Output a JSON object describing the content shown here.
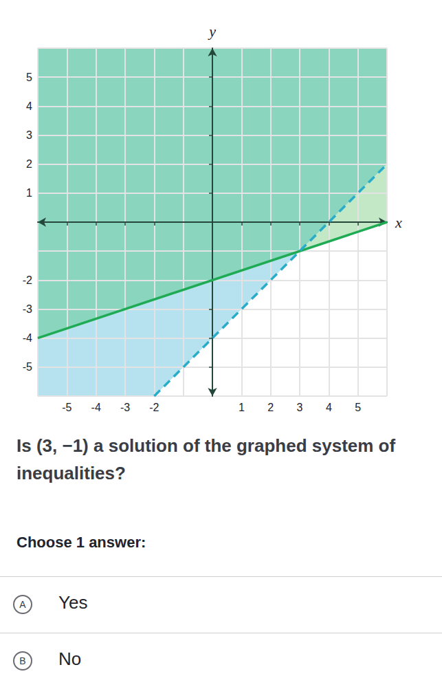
{
  "chart_data": {
    "type": "inequality",
    "xlabel": "x",
    "ylabel": "y",
    "xlim": [
      -6,
      6
    ],
    "ylim": [
      -6,
      6
    ],
    "xticks": [
      -5,
      -4,
      -3,
      -2,
      1,
      2,
      3,
      4,
      5
    ],
    "yticks": [
      -5,
      -4,
      -3,
      -2,
      1,
      2,
      3,
      4,
      5
    ],
    "grid": true,
    "series": [
      {
        "type": "polygon",
        "color": "#8ad5bd",
        "x": [
          -6,
          3,
          6,
          6,
          -6
        ],
        "values": [
          -4,
          -1,
          2,
          6,
          6
        ]
      },
      {
        "type": "polygon",
        "color": "#c2e8c6",
        "x": [
          3,
          6,
          6
        ],
        "values": [
          -1,
          0,
          2
        ]
      },
      {
        "type": "polygon",
        "color": "#b6e2ef",
        "x": [
          3,
          -6,
          -6,
          -2
        ],
        "values": [
          -1,
          -4,
          -6,
          -6
        ]
      },
      {
        "type": "line",
        "color": "#1fab54",
        "line_style": "solid",
        "x": [
          -6,
          6
        ],
        "values": [
          -4,
          0
        ]
      },
      {
        "type": "line",
        "color": "#29abca",
        "line_style": "dashed",
        "x": [
          -2,
          6
        ],
        "values": [
          -6,
          2
        ]
      }
    ]
  },
  "question": "Is (3, −1) a solution of the graphed system of inequalities?",
  "instruction": "Choose 1 answer:",
  "choices": [
    {
      "letter": "A",
      "text": "Yes"
    },
    {
      "letter": "B",
      "text": "No"
    }
  ]
}
